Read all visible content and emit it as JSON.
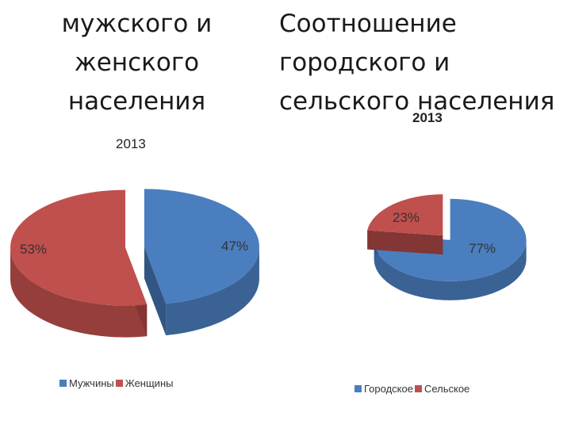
{
  "colors": {
    "male": "#4a7ebf",
    "female": "#c0504d",
    "urban": "#4a7ebf",
    "rural": "#c0504d"
  },
  "chart_data": [
    {
      "type": "pie",
      "title": "мужского и\nженского\nнаселения",
      "subtitle": "2013",
      "categories": [
        "Мужчины",
        "Женщины"
      ],
      "values": [
        47,
        53
      ],
      "labels": [
        "47%",
        "53%"
      ],
      "legend": "bottom",
      "exploded": true,
      "style": "3d"
    },
    {
      "type": "pie",
      "title": "Соотношение\nгородского и\nсельского населения",
      "subtitle": "2013",
      "categories": [
        "Городское",
        "Сельское"
      ],
      "values": [
        77,
        23
      ],
      "labels": [
        "77%",
        "23%"
      ],
      "legend": "bottom",
      "exploded": true,
      "style": "3d"
    }
  ]
}
